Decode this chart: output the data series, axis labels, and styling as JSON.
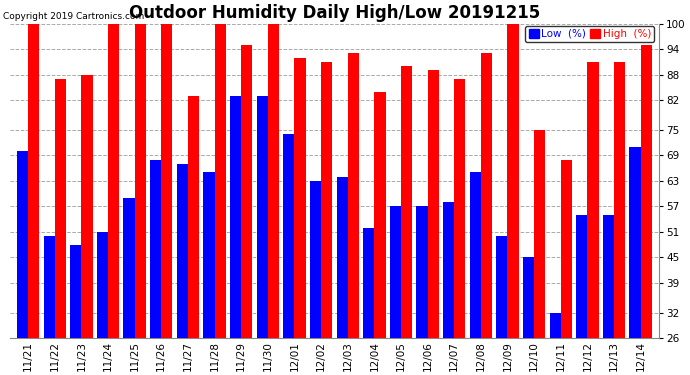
{
  "title": "Outdoor Humidity Daily High/Low 20191215",
  "copyright": "Copyright 2019 Cartronics.com",
  "dates": [
    "11/21",
    "11/22",
    "11/23",
    "11/24",
    "11/25",
    "11/26",
    "11/27",
    "11/28",
    "11/29",
    "11/30",
    "12/01",
    "12/02",
    "12/03",
    "12/04",
    "12/05",
    "12/06",
    "12/07",
    "12/08",
    "12/09",
    "12/10",
    "12/11",
    "12/12",
    "12/13",
    "12/14"
  ],
  "high": [
    100,
    87,
    88,
    100,
    100,
    100,
    83,
    100,
    95,
    100,
    92,
    91,
    93,
    84,
    90,
    89,
    87,
    93,
    100,
    75,
    68,
    91,
    91,
    95
  ],
  "low": [
    70,
    50,
    48,
    51,
    59,
    68,
    67,
    65,
    83,
    83,
    74,
    63,
    64,
    52,
    57,
    57,
    58,
    65,
    50,
    45,
    32,
    55,
    55,
    71
  ],
  "high_color": "#ff0000",
  "low_color": "#0000ff",
  "bg_color": "#ffffff",
  "grid_color": "#aaaaaa",
  "yticks": [
    26,
    32,
    39,
    45,
    51,
    57,
    63,
    69,
    75,
    82,
    88,
    94,
    100
  ],
  "ymin": 26,
  "ymax": 100,
  "bar_width": 0.42,
  "title_fontsize": 12,
  "tick_fontsize": 7.5,
  "xlabel_fontsize": 7.5,
  "legend_low_label": "Low  (%)",
  "legend_high_label": "High  (%)"
}
